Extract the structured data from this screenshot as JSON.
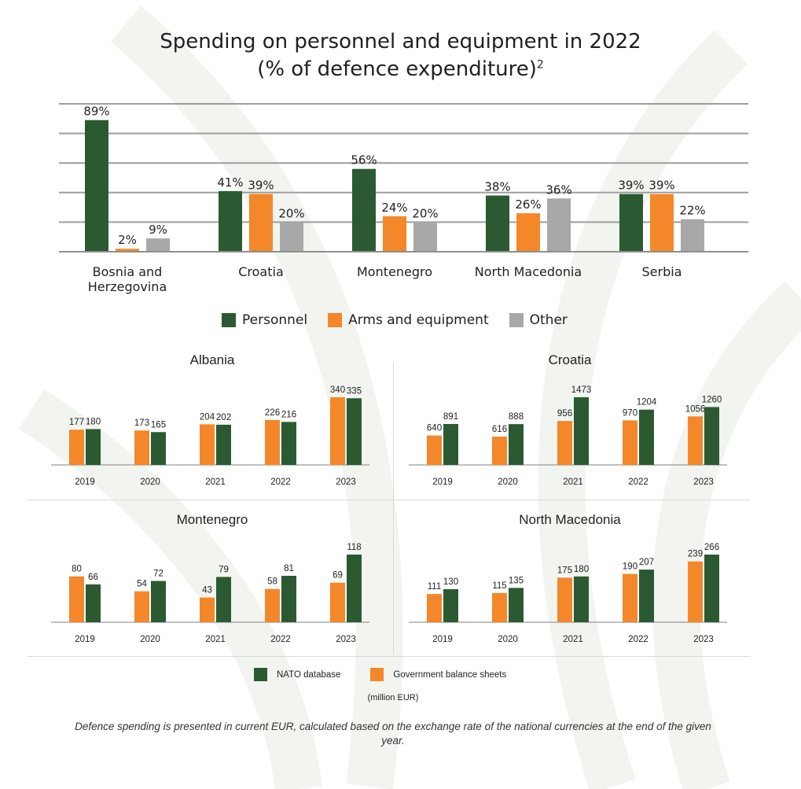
{
  "title_line1": "Spending on personnel and equipment in 2022",
  "title_line2": "(% of defence expenditure)",
  "title_sup": "2",
  "colors": {
    "personnel": "#2b5a32",
    "arms": "#f3872a",
    "other": "#a8a8a8",
    "nato": "#2b5a32",
    "gov": "#f3872a"
  },
  "legend_main": {
    "personnel": "Personnel",
    "arms": "Arms and equipment",
    "other": "Other"
  },
  "legend_small": {
    "nato": "NATO database",
    "gov": "Government balance sheets"
  },
  "unit_label": "(million EUR)",
  "footnote": "Defence spending is presented in current EUR, calculated based on the exchange rate of the national currencies at the end of the given year.",
  "chart_data": [
    {
      "type": "bar",
      "title": "Spending on personnel and equipment in 2022 (% of defence expenditure)",
      "categories": [
        "Bosnia and Herzegovina",
        "Croatia",
        "Montenegro",
        "North Macedonia",
        "Serbia"
      ],
      "category_lines": [
        [
          "Bosnia and",
          "Herzegovina"
        ],
        [
          "Croatia"
        ],
        [
          "Montenegro"
        ],
        [
          "North Macedonia"
        ],
        [
          "Serbia"
        ]
      ],
      "series": [
        {
          "name": "Personnel",
          "values": [
            89,
            41,
            56,
            38,
            39
          ]
        },
        {
          "name": "Arms and equipment",
          "values": [
            2,
            39,
            24,
            26,
            39
          ]
        },
        {
          "name": "Other",
          "values": [
            9,
            20,
            20,
            36,
            22
          ]
        }
      ],
      "ylim": [
        0,
        100
      ],
      "grid": true,
      "unit_suffix": "%"
    },
    {
      "type": "bar",
      "title": "Albania",
      "categories": [
        "2019",
        "2020",
        "2021",
        "2022",
        "2023"
      ],
      "series": [
        {
          "name": "Government balance sheets",
          "values": [
            177,
            173,
            204,
            226,
            340
          ]
        },
        {
          "name": "NATO database",
          "values": [
            180,
            165,
            202,
            216,
            335
          ]
        }
      ]
    },
    {
      "type": "bar",
      "title": "Croatia",
      "categories": [
        "2019",
        "2020",
        "2021",
        "2022",
        "2023"
      ],
      "series": [
        {
          "name": "Government balance sheets",
          "values": [
            640,
            616,
            956,
            970,
            1056
          ]
        },
        {
          "name": "NATO database",
          "values": [
            891,
            888,
            1473,
            1204,
            1260
          ]
        }
      ]
    },
    {
      "type": "bar",
      "title": "Montenegro",
      "categories": [
        "2019",
        "2020",
        "2021",
        "2022",
        "2023"
      ],
      "series": [
        {
          "name": "Government balance sheets",
          "values": [
            80,
            54,
            43,
            58,
            69
          ]
        },
        {
          "name": "NATO database",
          "values": [
            66,
            72,
            79,
            81,
            118
          ]
        }
      ]
    },
    {
      "type": "bar",
      "title": "North Macedonia",
      "categories": [
        "2019",
        "2020",
        "2021",
        "2022",
        "2023"
      ],
      "series": [
        {
          "name": "Government balance sheets",
          "values": [
            111,
            115,
            175,
            190,
            239
          ]
        },
        {
          "name": "NATO database",
          "values": [
            130,
            135,
            180,
            207,
            266
          ]
        }
      ]
    }
  ]
}
